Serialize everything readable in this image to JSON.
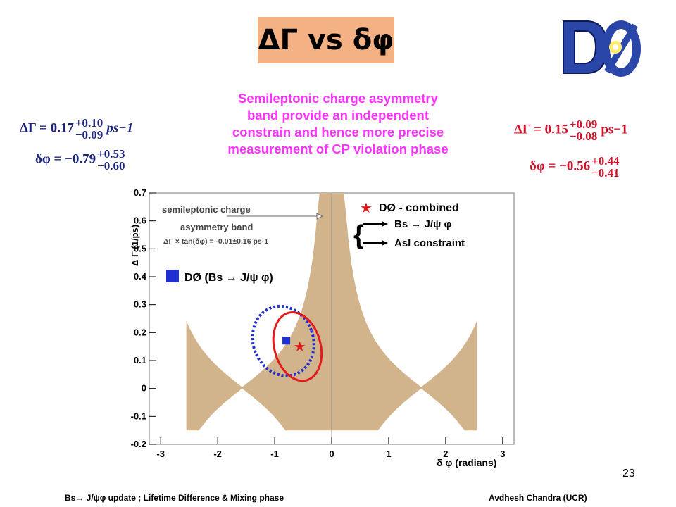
{
  "slide": {
    "title": "ΔΓ vs δφ",
    "description_lines": [
      "Semileptonic charge asymmetry",
      "band provide an independent",
      "constrain and hence more precise",
      "measurement  of CP violation phase"
    ],
    "left_results": {
      "dgamma_label": "ΔΓ = 0.17",
      "dgamma_up": "+0.10",
      "dgamma_down": "−0.09",
      "dgamma_unit": "ps−1",
      "dphi_label": "δφ = −0.79",
      "dphi_up": "+0.53",
      "dphi_down": "−0.60"
    },
    "right_results": {
      "dgamma_label": "ΔΓ = 0.15",
      "dgamma_up": "+0.09",
      "dgamma_down": "−0.08",
      "dgamma_unit": "ps−1",
      "dphi_label": "δφ = −0.56",
      "dphi_up": "+0.44",
      "dphi_down": "−0.41"
    },
    "slide_number": "23",
    "footer_left": "Bs→ J/ψφ update  ;   Lifetime Difference & Mixing phase",
    "footer_right": "Avdhesh Chandra (UCR)",
    "logo_text": "DØ"
  },
  "chart_data": {
    "type": "scatter",
    "xlabel": "δ φ (radians)",
    "ylabel": "Δ Γ (1/ps)",
    "xlim": [
      -3.2,
      3.2
    ],
    "ylim": [
      -0.2,
      0.7
    ],
    "x_ticks": [
      -3,
      -2,
      -1,
      0,
      1,
      2,
      3
    ],
    "y_ticks": [
      -0.2,
      -0.1,
      0,
      0.1,
      0.2,
      0.3,
      0.4,
      0.5,
      0.6,
      0.7
    ],
    "band_label_lines": [
      "semileptonic charge",
      "asymmetry band"
    ],
    "band_formula": "ΔΓ × tan(δφ) = -0.01±0.16 ps-1",
    "band_color": "#d2b48c",
    "legend": {
      "combined": "DØ - combined",
      "bs_item": "Bs → J/ψ φ",
      "asl_item": "Asl constraint",
      "bs_only": "DØ (Bs → J/ψ φ)"
    },
    "series": [
      {
        "name": "DØ (Bs → J/ψ φ)",
        "color": "#1f2fd0",
        "best_fit": [
          -0.79,
          0.17
        ],
        "contour_center": [
          -0.85,
          0.17
        ],
        "contour_rx": 0.62,
        "contour_ry": 0.11
      },
      {
        "name": "DØ - combined",
        "color": "#e31a1c",
        "best_fit": [
          -0.56,
          0.15
        ],
        "contour_center": [
          -0.6,
          0.15
        ],
        "contour_rx": 0.45,
        "contour_ry": 0.1
      }
    ]
  }
}
